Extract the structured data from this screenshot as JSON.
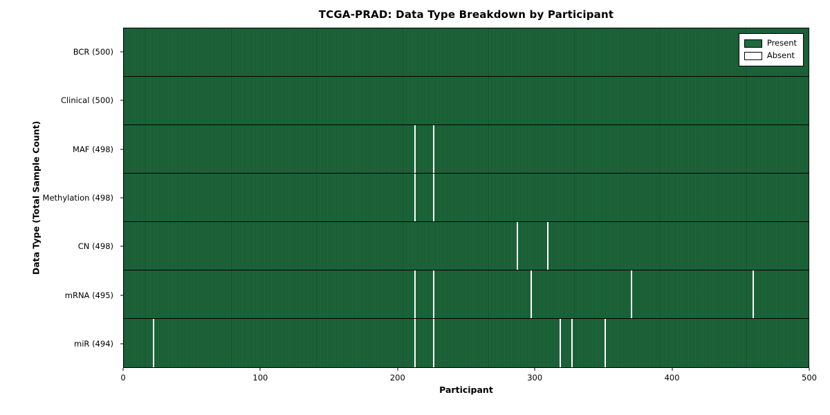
{
  "figure": {
    "title": "TCGA-PRAD: Data Type Breakdown by Participant",
    "xlabel": "Participant",
    "ylabel": "Data Type (Total Sample Count)"
  },
  "colors": {
    "present": "#1e6b3e",
    "absent": "#ffffff",
    "axis": "#000000",
    "background": "#ffffff"
  },
  "chart_data": {
    "type": "heatmap",
    "title": "TCGA-PRAD: Data Type Breakdown by Participant",
    "xlabel": "Participant",
    "ylabel": "Data Type (Total Sample Count)",
    "x_range": [
      0,
      500
    ],
    "x_ticks": [
      "0",
      "100",
      "200",
      "300",
      "400",
      "500"
    ],
    "n_participants": 500,
    "legend_position": "upper right",
    "grid": false,
    "legend": [
      {
        "label": "Present",
        "color": "#1e6b3e"
      },
      {
        "label": "Absent",
        "color": "#ffffff"
      }
    ],
    "rows": [
      {
        "label": "BCR (500)",
        "data_type": "BCR",
        "present_count": 500,
        "absent_count": 0,
        "absent_participants": []
      },
      {
        "label": "Clinical (500)",
        "data_type": "Clinical",
        "present_count": 500,
        "absent_count": 0,
        "absent_participants": []
      },
      {
        "label": "MAF (498)",
        "data_type": "MAF",
        "present_count": 498,
        "absent_count": 2,
        "absent_participants": [
          212,
          226
        ]
      },
      {
        "label": "Methylation (498)",
        "data_type": "Methylation",
        "present_count": 498,
        "absent_count": 2,
        "absent_participants": [
          212,
          226
        ]
      },
      {
        "label": "CN (498)",
        "data_type": "CN",
        "present_count": 498,
        "absent_count": 2,
        "absent_participants": [
          287,
          309
        ]
      },
      {
        "label": "mRNA (495)",
        "data_type": "mRNA",
        "present_count": 495,
        "absent_count": 5,
        "absent_participants": [
          212,
          226,
          297,
          370,
          459
        ]
      },
      {
        "label": "miR (494)",
        "data_type": "miR",
        "present_count": 494,
        "absent_count": 6,
        "absent_participants": [
          21,
          212,
          226,
          318,
          327,
          351
        ]
      }
    ]
  }
}
